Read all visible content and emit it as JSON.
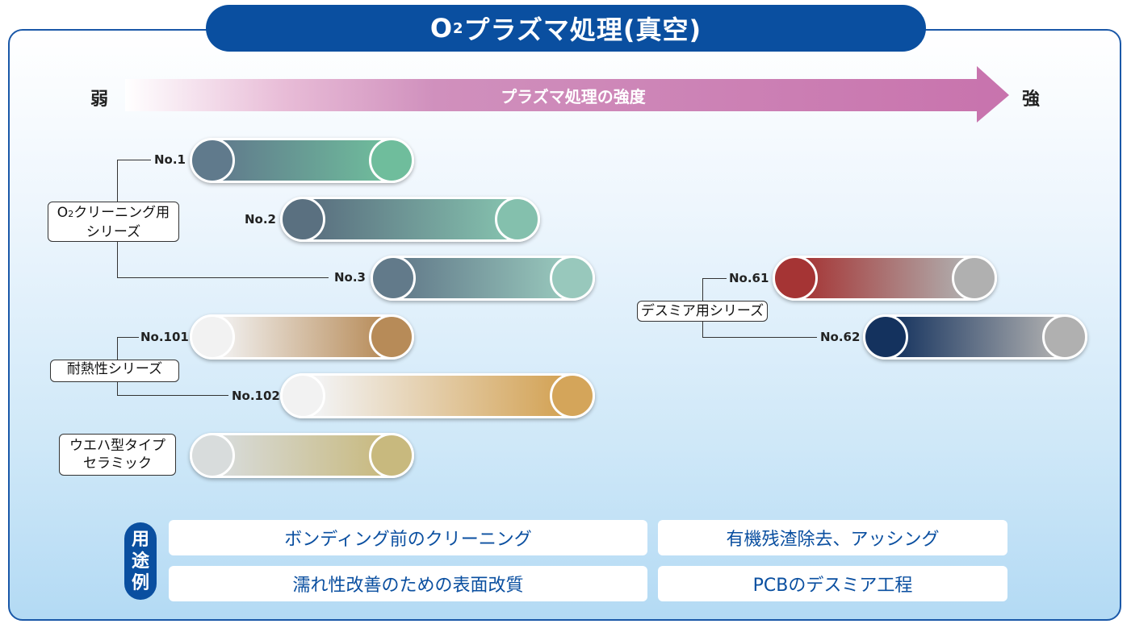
{
  "title": {
    "main": "O",
    "sub": "2",
    "rest": "プラズマ処理(真空)"
  },
  "strength_axis": {
    "weak": "弱",
    "strong": "強",
    "label": "プラズマ処理の強度"
  },
  "groups": {
    "o2_cleaning": {
      "line1_a": "O",
      "line1_sub": "2",
      "line1_b": "クリーニング用",
      "line2": "シリーズ"
    },
    "heat_resistant": {
      "label": "耐熱性シリーズ"
    },
    "wafer_type": {
      "line1": "ウエハ型タイプ",
      "line2": "セラミック"
    },
    "desmear": {
      "label": "デスミア用シリーズ"
    }
  },
  "products": [
    {
      "name": "No.1",
      "colors": [
        "#607a8c",
        "#6fbd9c"
      ]
    },
    {
      "name": "No.2",
      "colors": [
        "#5a7080",
        "#84c0ad"
      ]
    },
    {
      "name": "No.3",
      "colors": [
        "#627a8a",
        "#98c8bc"
      ]
    },
    {
      "name": "No.101",
      "colors": [
        "#f2f2f2",
        "#b78b58"
      ]
    },
    {
      "name": "No.102",
      "colors": [
        "#f2f2f2",
        "#d4a55a"
      ]
    },
    {
      "name": "",
      "colors": [
        "#d8dcdc",
        "#c8b97e"
      ]
    },
    {
      "name": "No.61",
      "colors": [
        "#a53434",
        "#b0b0b0"
      ]
    },
    {
      "name": "No.62",
      "colors": [
        "#14325e",
        "#b0b0b0"
      ]
    }
  ],
  "uses": {
    "badge": [
      "用",
      "途",
      "例"
    ],
    "items": [
      "ボンディング前のクリーニング",
      "有機残渣除去、アッシング",
      "濡れ性改善のための表面改質",
      "PCBのデスミア工程"
    ]
  }
}
